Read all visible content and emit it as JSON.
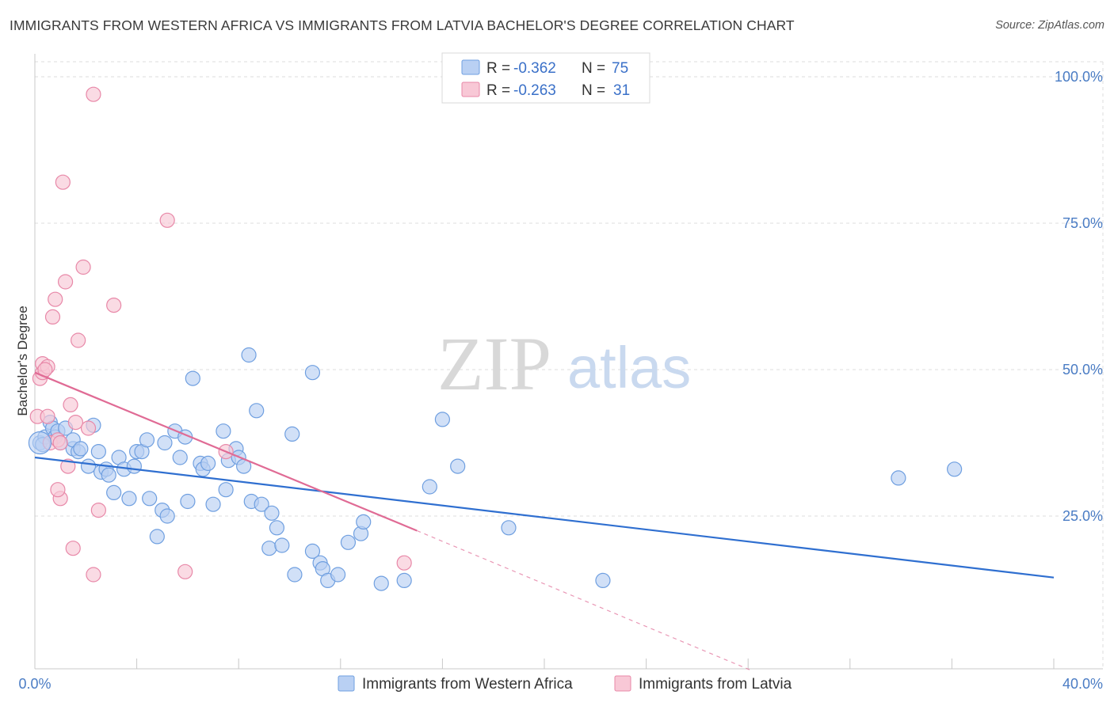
{
  "title": "IMMIGRANTS FROM WESTERN AFRICA VS IMMIGRANTS FROM LATVIA BACHELOR'S DEGREE CORRELATION CHART",
  "source": "Source: ZipAtlas.com",
  "watermark": {
    "zip": "ZIP",
    "atlas": "atlas"
  },
  "legend": {
    "rows": [
      {
        "r_label": "R =",
        "r_value": "-0.362",
        "n_label": "N =",
        "n_value": "75",
        "color": "#6f9fe0",
        "fill": "#b9d0f3"
      },
      {
        "r_label": "R =",
        "r_value": "-0.263",
        "n_label": "N =",
        "n_value": "31",
        "color": "#e888a8",
        "fill": "#f8c8d6"
      }
    ]
  },
  "chart_data": {
    "type": "scatter",
    "title": "IMMIGRANTS FROM WESTERN AFRICA VS IMMIGRANTS FROM LATVIA BACHELOR'S DEGREE CORRELATION CHART",
    "xlabel": "",
    "ylabel": "Bachelor's Degree",
    "xlim": [
      0,
      40
    ],
    "ylim": [
      0,
      105
    ],
    "x_tick_labels": [
      "0.0%",
      "40.0%"
    ],
    "y_ticks": [
      25,
      50,
      75,
      100
    ],
    "y_tick_labels": [
      "25.0%",
      "50.0%",
      "75.0%",
      "100.0%"
    ],
    "grid": true,
    "legend_position": "top-center",
    "series": [
      {
        "name": "Immigrants from Western Africa",
        "color": "#6f9fe0",
        "fill": "#b9d0f3",
        "trend": {
          "x": [
            0,
            40
          ],
          "y": [
            35.0,
            14.5
          ],
          "color": "#2f6fd0"
        },
        "points": [
          [
            0.2,
            37.5
          ],
          [
            0.4,
            38.5
          ],
          [
            0.6,
            41
          ],
          [
            0.7,
            40
          ],
          [
            0.8,
            38.5
          ],
          [
            0.9,
            39.5
          ],
          [
            1.0,
            37.5
          ],
          [
            1.2,
            40
          ],
          [
            1.5,
            36.5
          ],
          [
            1.5,
            38
          ],
          [
            1.7,
            36
          ],
          [
            1.8,
            36.5
          ],
          [
            2.1,
            33.5
          ],
          [
            2.3,
            40.5
          ],
          [
            2.5,
            36
          ],
          [
            2.6,
            32.5
          ],
          [
            2.8,
            33
          ],
          [
            2.9,
            32
          ],
          [
            3.1,
            29
          ],
          [
            3.3,
            35
          ],
          [
            3.5,
            33
          ],
          [
            3.7,
            28
          ],
          [
            3.9,
            33.5
          ],
          [
            4.0,
            36
          ],
          [
            4.2,
            36
          ],
          [
            4.4,
            38
          ],
          [
            4.5,
            28
          ],
          [
            4.8,
            21.5
          ],
          [
            5.0,
            26
          ],
          [
            5.2,
            25
          ],
          [
            5.1,
            37.5
          ],
          [
            5.5,
            39.5
          ],
          [
            5.7,
            35
          ],
          [
            5.9,
            38.5
          ],
          [
            6.0,
            27.5
          ],
          [
            6.2,
            48.5
          ],
          [
            6.5,
            34
          ],
          [
            6.6,
            33
          ],
          [
            6.8,
            34
          ],
          [
            7.0,
            27
          ],
          [
            7.4,
            39.5
          ],
          [
            7.5,
            29.5
          ],
          [
            7.6,
            34.5
          ],
          [
            7.9,
            36.5
          ],
          [
            8.0,
            35
          ],
          [
            8.2,
            33.5
          ],
          [
            8.4,
            52.5
          ],
          [
            8.5,
            27.5
          ],
          [
            8.7,
            43
          ],
          [
            8.9,
            27
          ],
          [
            9.2,
            19.5
          ],
          [
            9.3,
            25.5
          ],
          [
            9.5,
            23
          ],
          [
            9.7,
            20
          ],
          [
            10.1,
            39
          ],
          [
            10.2,
            15
          ],
          [
            10.9,
            49.5
          ],
          [
            10.9,
            19
          ],
          [
            11.2,
            17
          ],
          [
            11.3,
            16
          ],
          [
            11.5,
            14
          ],
          [
            11.9,
            15
          ],
          [
            12.3,
            20.5
          ],
          [
            12.8,
            22
          ],
          [
            12.9,
            24
          ],
          [
            13.6,
            13.5
          ],
          [
            14.5,
            14
          ],
          [
            15.5,
            30
          ],
          [
            16.0,
            41.5
          ],
          [
            16.6,
            33.5
          ],
          [
            18.6,
            23
          ],
          [
            22.3,
            14
          ],
          [
            33.9,
            31.5
          ],
          [
            36.1,
            33
          ],
          [
            0.3,
            37.2
          ]
        ]
      },
      {
        "name": "Immigrants from Latvia",
        "color": "#e888a8",
        "fill": "#f8c8d6",
        "trend": {
          "x": [
            0,
            15
          ],
          "y": [
            49.5,
            22.5
          ],
          "color": "#e06b95",
          "dashed_extension": {
            "x": [
              15,
              28.2
            ],
            "y": [
              22.5,
              -1.5
            ]
          }
        },
        "points": [
          [
            0.1,
            42
          ],
          [
            0.2,
            48.5
          ],
          [
            0.3,
            49.5
          ],
          [
            0.3,
            51
          ],
          [
            0.5,
            50.5
          ],
          [
            0.5,
            42
          ],
          [
            0.6,
            37.5
          ],
          [
            0.7,
            59
          ],
          [
            0.8,
            62
          ],
          [
            0.9,
            38
          ],
          [
            1.0,
            37.5
          ],
          [
            1.0,
            28
          ],
          [
            1.1,
            82
          ],
          [
            1.2,
            65
          ],
          [
            1.3,
            33.5
          ],
          [
            1.4,
            44
          ],
          [
            1.5,
            19.5
          ],
          [
            1.6,
            41
          ],
          [
            1.7,
            55
          ],
          [
            1.9,
            67.5
          ],
          [
            2.1,
            40
          ],
          [
            2.3,
            97
          ],
          [
            2.3,
            15
          ],
          [
            2.5,
            26
          ],
          [
            3.1,
            61
          ],
          [
            5.2,
            75.5
          ],
          [
            5.9,
            15.5
          ],
          [
            7.5,
            36
          ],
          [
            0.9,
            29.5
          ],
          [
            14.5,
            17
          ],
          [
            0.4,
            50
          ]
        ]
      }
    ]
  }
}
